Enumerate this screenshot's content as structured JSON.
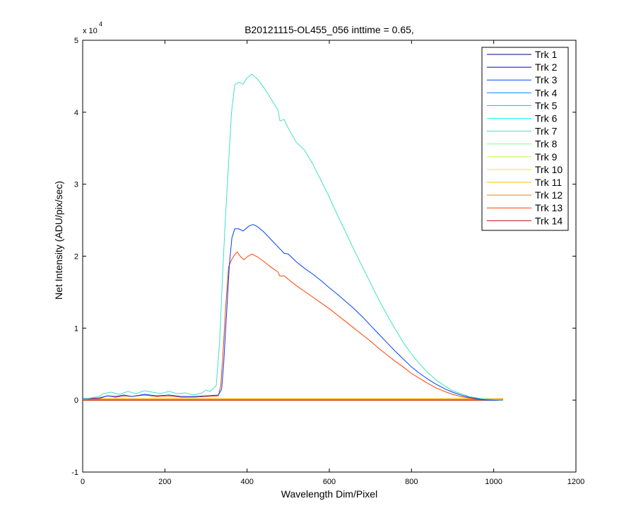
{
  "chart_data": {
    "type": "line",
    "title": "B20121115-OL455_056 inttime = 0.65,",
    "xlabel": "Wavelength Dim/Pixel",
    "ylabel": "Net Intensity (ADU/pix/sec)",
    "xlim": [
      0,
      1200
    ],
    "ylim": [
      -10000,
      50000
    ],
    "xticks": [
      0,
      200,
      400,
      600,
      800,
      1000,
      1200
    ],
    "xtick_labels": [
      "0",
      "200",
      "400",
      "600",
      "800",
      "1000",
      "1200"
    ],
    "yticks": [
      -10000,
      0,
      10000,
      20000,
      30000,
      40000,
      50000
    ],
    "ytick_labels": [
      "-1",
      "0",
      "1",
      "2",
      "3",
      "4",
      "5"
    ],
    "y_exponent_label": {
      "base": "x 10",
      "exp": "4"
    },
    "legend_position": "top-right",
    "grid": false,
    "series": [
      {
        "name": "Trk 1",
        "color": "#00008F",
        "profile": "flat",
        "values": [
          [
            0,
            0
          ],
          [
            1023,
            0
          ]
        ]
      },
      {
        "name": "Trk 2",
        "color": "#0000CF",
        "profile": "flat",
        "values": [
          [
            0,
            0
          ],
          [
            1023,
            0
          ]
        ]
      },
      {
        "name": "Trk 3",
        "color": "#0040FF",
        "profile": "medium",
        "values": [
          [
            0,
            200
          ],
          [
            40,
            300
          ],
          [
            60,
            600
          ],
          [
            80,
            500
          ],
          [
            100,
            700
          ],
          [
            120,
            500
          ],
          [
            150,
            800
          ],
          [
            180,
            600
          ],
          [
            210,
            700
          ],
          [
            240,
            500
          ],
          [
            270,
            500
          ],
          [
            300,
            600
          ],
          [
            330,
            700
          ],
          [
            338,
            1500
          ],
          [
            343,
            5000
          ],
          [
            350,
            12000
          ],
          [
            357,
            19000
          ],
          [
            363,
            22500
          ],
          [
            370,
            23800
          ],
          [
            380,
            23800
          ],
          [
            390,
            23500
          ],
          [
            405,
            24200
          ],
          [
            415,
            24400
          ],
          [
            425,
            24100
          ],
          [
            440,
            23400
          ],
          [
            460,
            22200
          ],
          [
            480,
            21000
          ],
          [
            490,
            20400
          ],
          [
            500,
            20300
          ],
          [
            520,
            19200
          ],
          [
            540,
            18300
          ],
          [
            560,
            17500
          ],
          [
            580,
            16600
          ],
          [
            600,
            15600
          ],
          [
            620,
            14700
          ],
          [
            640,
            13700
          ],
          [
            660,
            12700
          ],
          [
            680,
            11600
          ],
          [
            700,
            10400
          ],
          [
            720,
            9200
          ],
          [
            740,
            8000
          ],
          [
            760,
            6800
          ],
          [
            780,
            5700
          ],
          [
            800,
            4600
          ],
          [
            820,
            3700
          ],
          [
            840,
            2900
          ],
          [
            860,
            2200
          ],
          [
            880,
            1600
          ],
          [
            900,
            1100
          ],
          [
            920,
            700
          ],
          [
            940,
            400
          ],
          [
            960,
            200
          ],
          [
            980,
            0
          ],
          [
            1023,
            0
          ]
        ]
      },
      {
        "name": "Trk 4",
        "color": "#0080FF",
        "profile": "flat",
        "values": [
          [
            0,
            0
          ],
          [
            1023,
            0
          ]
        ]
      },
      {
        "name": "Trk 5",
        "color": "#00BFFF",
        "profile": "flat",
        "values": [
          [
            0,
            0
          ],
          [
            1023,
            0
          ]
        ]
      },
      {
        "name": "Trk 6",
        "color": "#10FFEF",
        "profile": "flat",
        "values": [
          [
            0,
            0
          ],
          [
            1023,
            0
          ]
        ]
      },
      {
        "name": "Trk 7",
        "color": "#40E0C8",
        "profile": "high",
        "values": [
          [
            0,
            100
          ],
          [
            40,
            500
          ],
          [
            50,
            900
          ],
          [
            70,
            1100
          ],
          [
            90,
            800
          ],
          [
            110,
            1200
          ],
          [
            130,
            900
          ],
          [
            150,
            1300
          ],
          [
            170,
            1100
          ],
          [
            190,
            900
          ],
          [
            210,
            1200
          ],
          [
            230,
            900
          ],
          [
            250,
            1000
          ],
          [
            270,
            700
          ],
          [
            290,
            1000
          ],
          [
            300,
            1400
          ],
          [
            310,
            1200
          ],
          [
            325,
            2000
          ],
          [
            333,
            8000
          ],
          [
            340,
            17000
          ],
          [
            347,
            25000
          ],
          [
            355,
            33000
          ],
          [
            362,
            40000
          ],
          [
            370,
            43800
          ],
          [
            380,
            44200
          ],
          [
            390,
            43900
          ],
          [
            400,
            44800
          ],
          [
            412,
            45300
          ],
          [
            425,
            44600
          ],
          [
            440,
            43500
          ],
          [
            460,
            41700
          ],
          [
            475,
            40300
          ],
          [
            480,
            38800
          ],
          [
            490,
            39000
          ],
          [
            500,
            37800
          ],
          [
            520,
            35800
          ],
          [
            540,
            34700
          ],
          [
            560,
            32800
          ],
          [
            580,
            30500
          ],
          [
            600,
            28200
          ],
          [
            620,
            25700
          ],
          [
            640,
            23300
          ],
          [
            660,
            20900
          ],
          [
            680,
            18600
          ],
          [
            700,
            16300
          ],
          [
            720,
            14000
          ],
          [
            740,
            11900
          ],
          [
            760,
            9900
          ],
          [
            780,
            8000
          ],
          [
            800,
            6400
          ],
          [
            820,
            5000
          ],
          [
            840,
            3800
          ],
          [
            860,
            2800
          ],
          [
            880,
            2000
          ],
          [
            900,
            1300
          ],
          [
            920,
            900
          ],
          [
            940,
            500
          ],
          [
            960,
            300
          ],
          [
            970,
            200
          ],
          [
            1023,
            0
          ]
        ]
      },
      {
        "name": "Trk 8",
        "color": "#80FF80",
        "profile": "flat",
        "values": [
          [
            0,
            0
          ],
          [
            1023,
            0
          ]
        ]
      },
      {
        "name": "Trk 9",
        "color": "#BFFF40",
        "profile": "flat",
        "values": [
          [
            0,
            0
          ],
          [
            1023,
            0
          ]
        ]
      },
      {
        "name": "Trk 10",
        "color": "#EFEF10",
        "profile": "flat",
        "values": [
          [
            0,
            0
          ],
          [
            1023,
            0
          ]
        ]
      },
      {
        "name": "Trk 11",
        "color": "#FFBF00",
        "profile": "flat",
        "values": [
          [
            0,
            200
          ],
          [
            1023,
            200
          ]
        ]
      },
      {
        "name": "Trk 12",
        "color": "#FF8000",
        "profile": "flat",
        "values": [
          [
            0,
            100
          ],
          [
            1023,
            100
          ]
        ]
      },
      {
        "name": "Trk 13",
        "color": "#FF4000",
        "profile": "low",
        "values": [
          [
            0,
            100
          ],
          [
            40,
            200
          ],
          [
            60,
            600
          ],
          [
            80,
            400
          ],
          [
            100,
            600
          ],
          [
            120,
            500
          ],
          [
            150,
            700
          ],
          [
            180,
            500
          ],
          [
            210,
            600
          ],
          [
            240,
            400
          ],
          [
            270,
            400
          ],
          [
            300,
            500
          ],
          [
            330,
            600
          ],
          [
            336,
            2000
          ],
          [
            342,
            7000
          ],
          [
            348,
            13000
          ],
          [
            355,
            18500
          ],
          [
            362,
            19500
          ],
          [
            370,
            20200
          ],
          [
            376,
            20600
          ],
          [
            383,
            20000
          ],
          [
            392,
            19500
          ],
          [
            400,
            19900
          ],
          [
            412,
            20300
          ],
          [
            425,
            19900
          ],
          [
            440,
            19300
          ],
          [
            460,
            18400
          ],
          [
            475,
            17800
          ],
          [
            480,
            17200
          ],
          [
            490,
            17300
          ],
          [
            500,
            16800
          ],
          [
            520,
            15900
          ],
          [
            540,
            15100
          ],
          [
            560,
            14300
          ],
          [
            580,
            13500
          ],
          [
            600,
            12700
          ],
          [
            620,
            11800
          ],
          [
            640,
            10900
          ],
          [
            660,
            10000
          ],
          [
            680,
            9100
          ],
          [
            700,
            8200
          ],
          [
            720,
            7200
          ],
          [
            740,
            6300
          ],
          [
            760,
            5400
          ],
          [
            780,
            4600
          ],
          [
            800,
            3700
          ],
          [
            820,
            3000
          ],
          [
            840,
            2300
          ],
          [
            860,
            1700
          ],
          [
            880,
            1200
          ],
          [
            900,
            800
          ],
          [
            920,
            500
          ],
          [
            940,
            300
          ],
          [
            960,
            100
          ],
          [
            1023,
            0
          ]
        ]
      },
      {
        "name": "Trk 14",
        "color": "#CF0000",
        "profile": "flat",
        "values": [
          [
            0,
            0
          ],
          [
            1023,
            0
          ]
        ]
      }
    ]
  }
}
